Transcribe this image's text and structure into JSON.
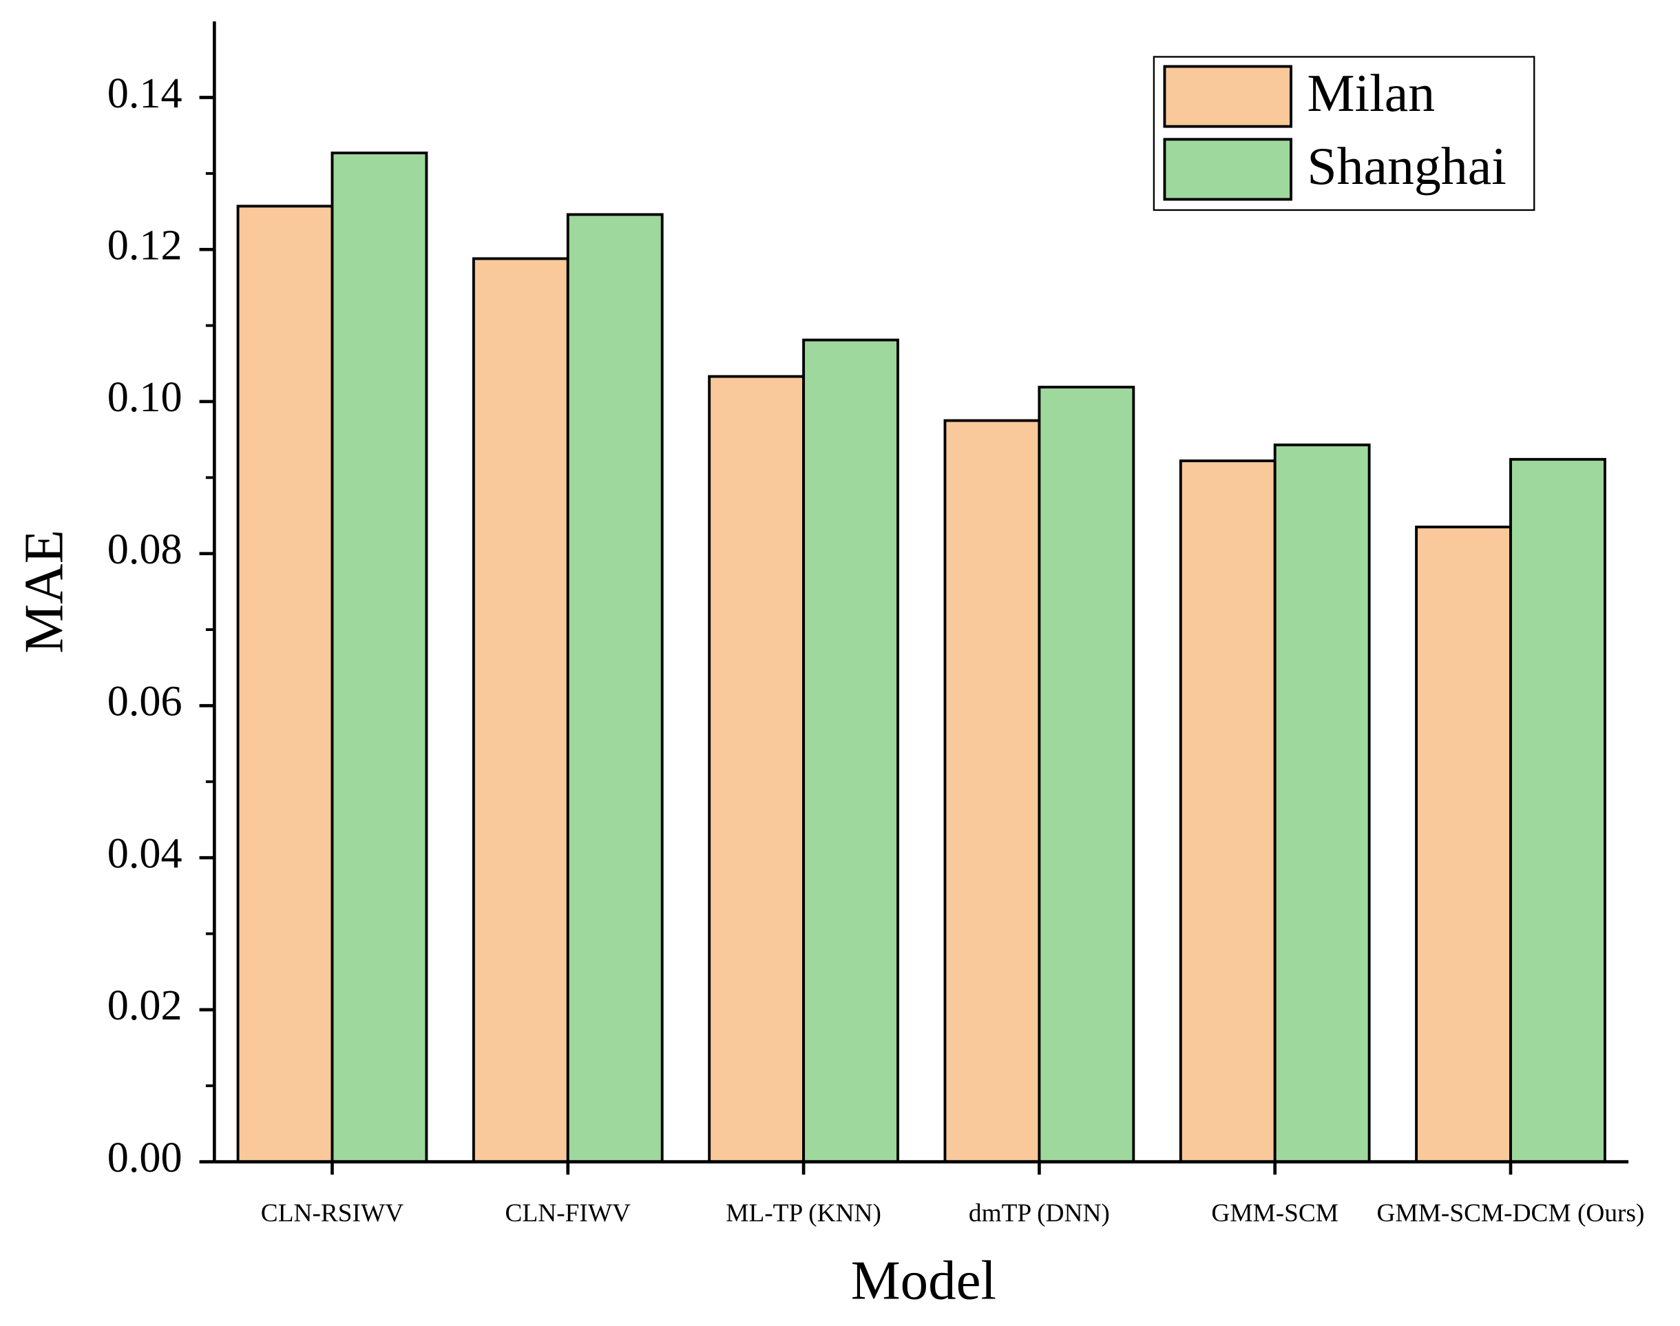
{
  "chart_data": {
    "type": "bar",
    "x_label": "Model",
    "y_label": "MAE",
    "categories": [
      "CLN-RSIWV",
      "CLN-FIWV",
      "ML-TP (KNN)",
      "dmTP (DNN)",
      "GMM-SCM",
      "GMM-SCM-DCM (Ours)"
    ],
    "series": [
      {
        "name": "Milan",
        "color": "#f9c89b",
        "values": [
          0.1257,
          0.1188,
          0.1033,
          0.0975,
          0.0922,
          0.0835
        ]
      },
      {
        "name": "Shanghai",
        "color": "#9ed89c",
        "values": [
          0.1327,
          0.1246,
          0.1081,
          0.1019,
          0.0943,
          0.0924
        ]
      }
    ],
    "ylim": [
      0,
      0.15
    ],
    "yticks": [
      {
        "value": 0,
        "label": "0.00"
      },
      {
        "value": 0.02,
        "label": "0.02"
      },
      {
        "value": 0.04,
        "label": "0.04"
      },
      {
        "value": 0.06,
        "label": "0.06"
      },
      {
        "value": 0.08,
        "label": "0.08"
      },
      {
        "value": 0.1,
        "label": "0.10"
      },
      {
        "value": 0.12,
        "label": "0.12"
      },
      {
        "value": 0.14,
        "label": "0.14"
      }
    ],
    "grid": false,
    "legend": "upper right"
  }
}
